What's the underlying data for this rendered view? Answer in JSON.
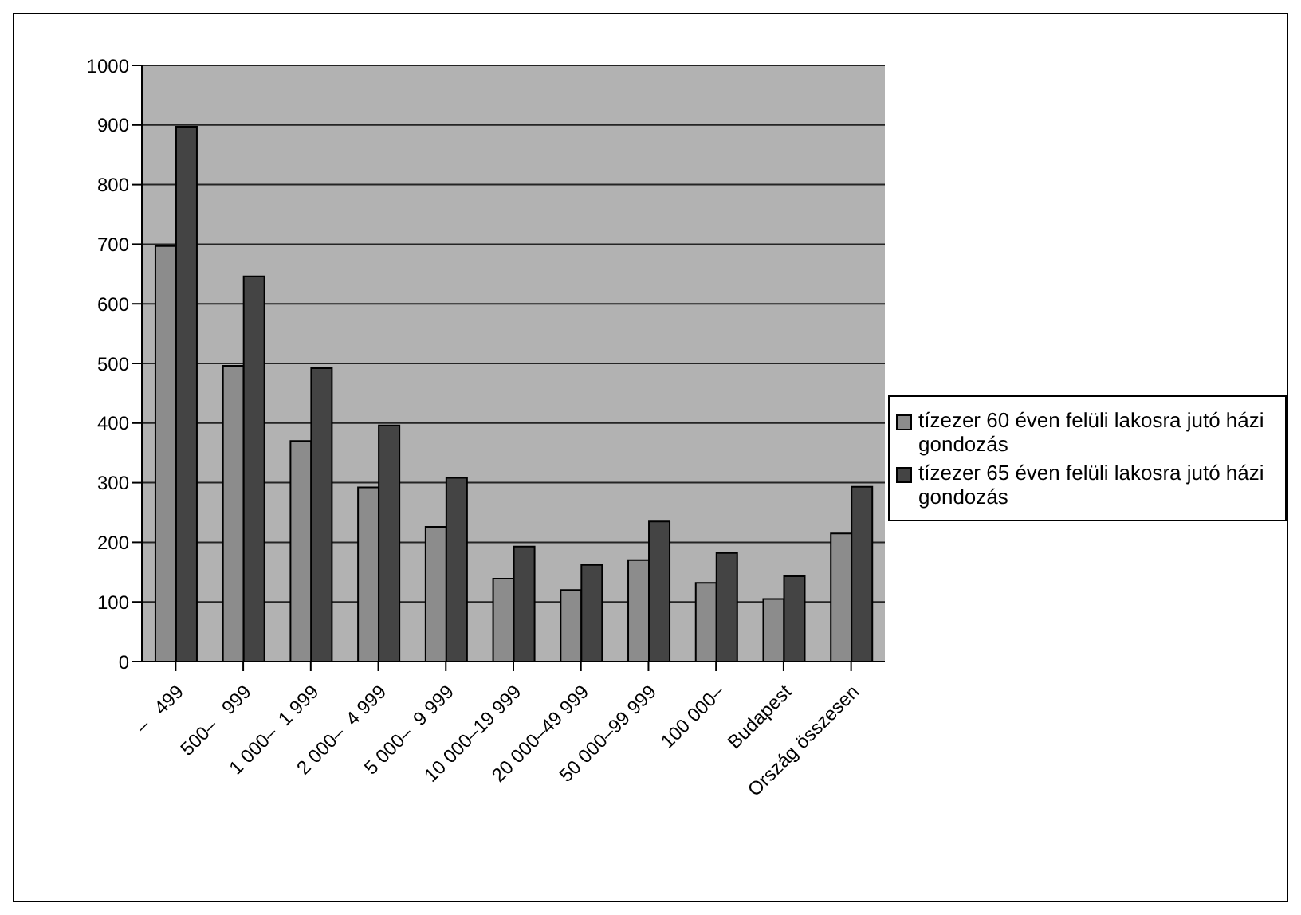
{
  "chart_data": {
    "type": "bar",
    "categories": [
      "–   499",
      "500–   999",
      "1 000–  1 999",
      "2 000–  4 999",
      "5 000–  9 999",
      "10 000–19 999",
      "20 000–49 999",
      "50 000–99 999",
      "100 000–",
      "Budapest",
      "Ország összesen"
    ],
    "series": [
      {
        "name": "tízezer 60 éven felüli lakosra jutó házi gondozás",
        "color": "#8c8c8c",
        "values": [
          697,
          496,
          370,
          292,
          226,
          139,
          120,
          170,
          132,
          105,
          215
        ]
      },
      {
        "name": "tízezer 65 éven felüli lakosra jutó házi gondozás",
        "color": "#444444",
        "values": [
          897,
          646,
          492,
          396,
          308,
          193,
          162,
          235,
          182,
          143,
          293
        ]
      }
    ],
    "ylim": [
      0,
      1000
    ],
    "yticks": [
      0,
      100,
      200,
      300,
      400,
      500,
      600,
      700,
      800,
      900,
      1000
    ],
    "grid": "y",
    "legend": "right"
  }
}
